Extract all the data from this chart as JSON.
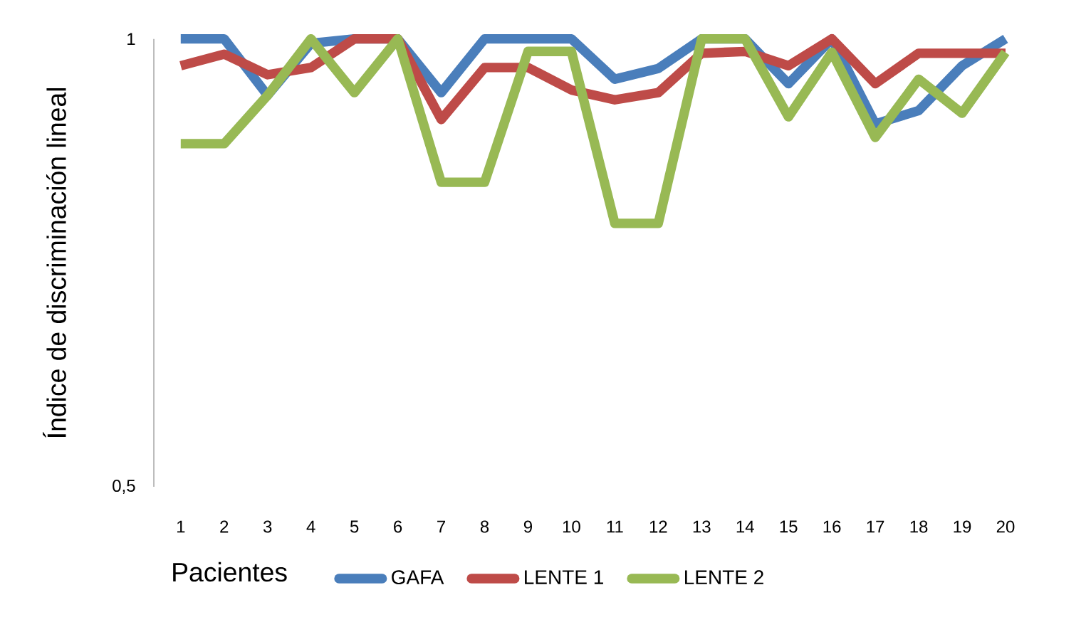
{
  "chart_data": {
    "type": "line",
    "xlabel": "Pacientes",
    "ylabel": "Índice de discriminación lineal",
    "categories": [
      "1",
      "2",
      "3",
      "4",
      "5",
      "6",
      "7",
      "8",
      "9",
      "10",
      "11",
      "12",
      "13",
      "14",
      "15",
      "16",
      "17",
      "18",
      "19",
      "20"
    ],
    "ylim": [
      0.5,
      1
    ],
    "yticks": [
      {
        "value": 0.5,
        "label": "0,5"
      },
      {
        "value": 1,
        "label": "1"
      }
    ],
    "legend": "bottom",
    "marker": "none",
    "line_style": "solid",
    "grid": false,
    "series": [
      {
        "name": "GAFA",
        "color": "#4a7ebb",
        "values": [
          1,
          1,
          0.937,
          0.995,
          1,
          1,
          0.94,
          1,
          1,
          1,
          0.955,
          0.967,
          1,
          1,
          0.95,
          1,
          0.905,
          0.92,
          0.97,
          1
        ]
      },
      {
        "name": "LENTE 1",
        "color": "#be4b48",
        "values": [
          0.97,
          0.983,
          0.96,
          0.968,
          1,
          1,
          0.91,
          0.968,
          0.968,
          0.943,
          0.932,
          0.94,
          0.984,
          0.986,
          0.97,
          1,
          0.95,
          0.984,
          0.984,
          0.984
        ]
      },
      {
        "name": "LENTE 2",
        "color": "#98b954",
        "values": [
          0.883,
          0.883,
          0.937,
          1,
          0.94,
          1,
          0.84,
          0.84,
          0.986,
          0.986,
          0.794,
          0.794,
          1,
          1,
          0.913,
          0.985,
          0.89,
          0.955,
          0.917,
          0.985
        ]
      }
    ]
  }
}
